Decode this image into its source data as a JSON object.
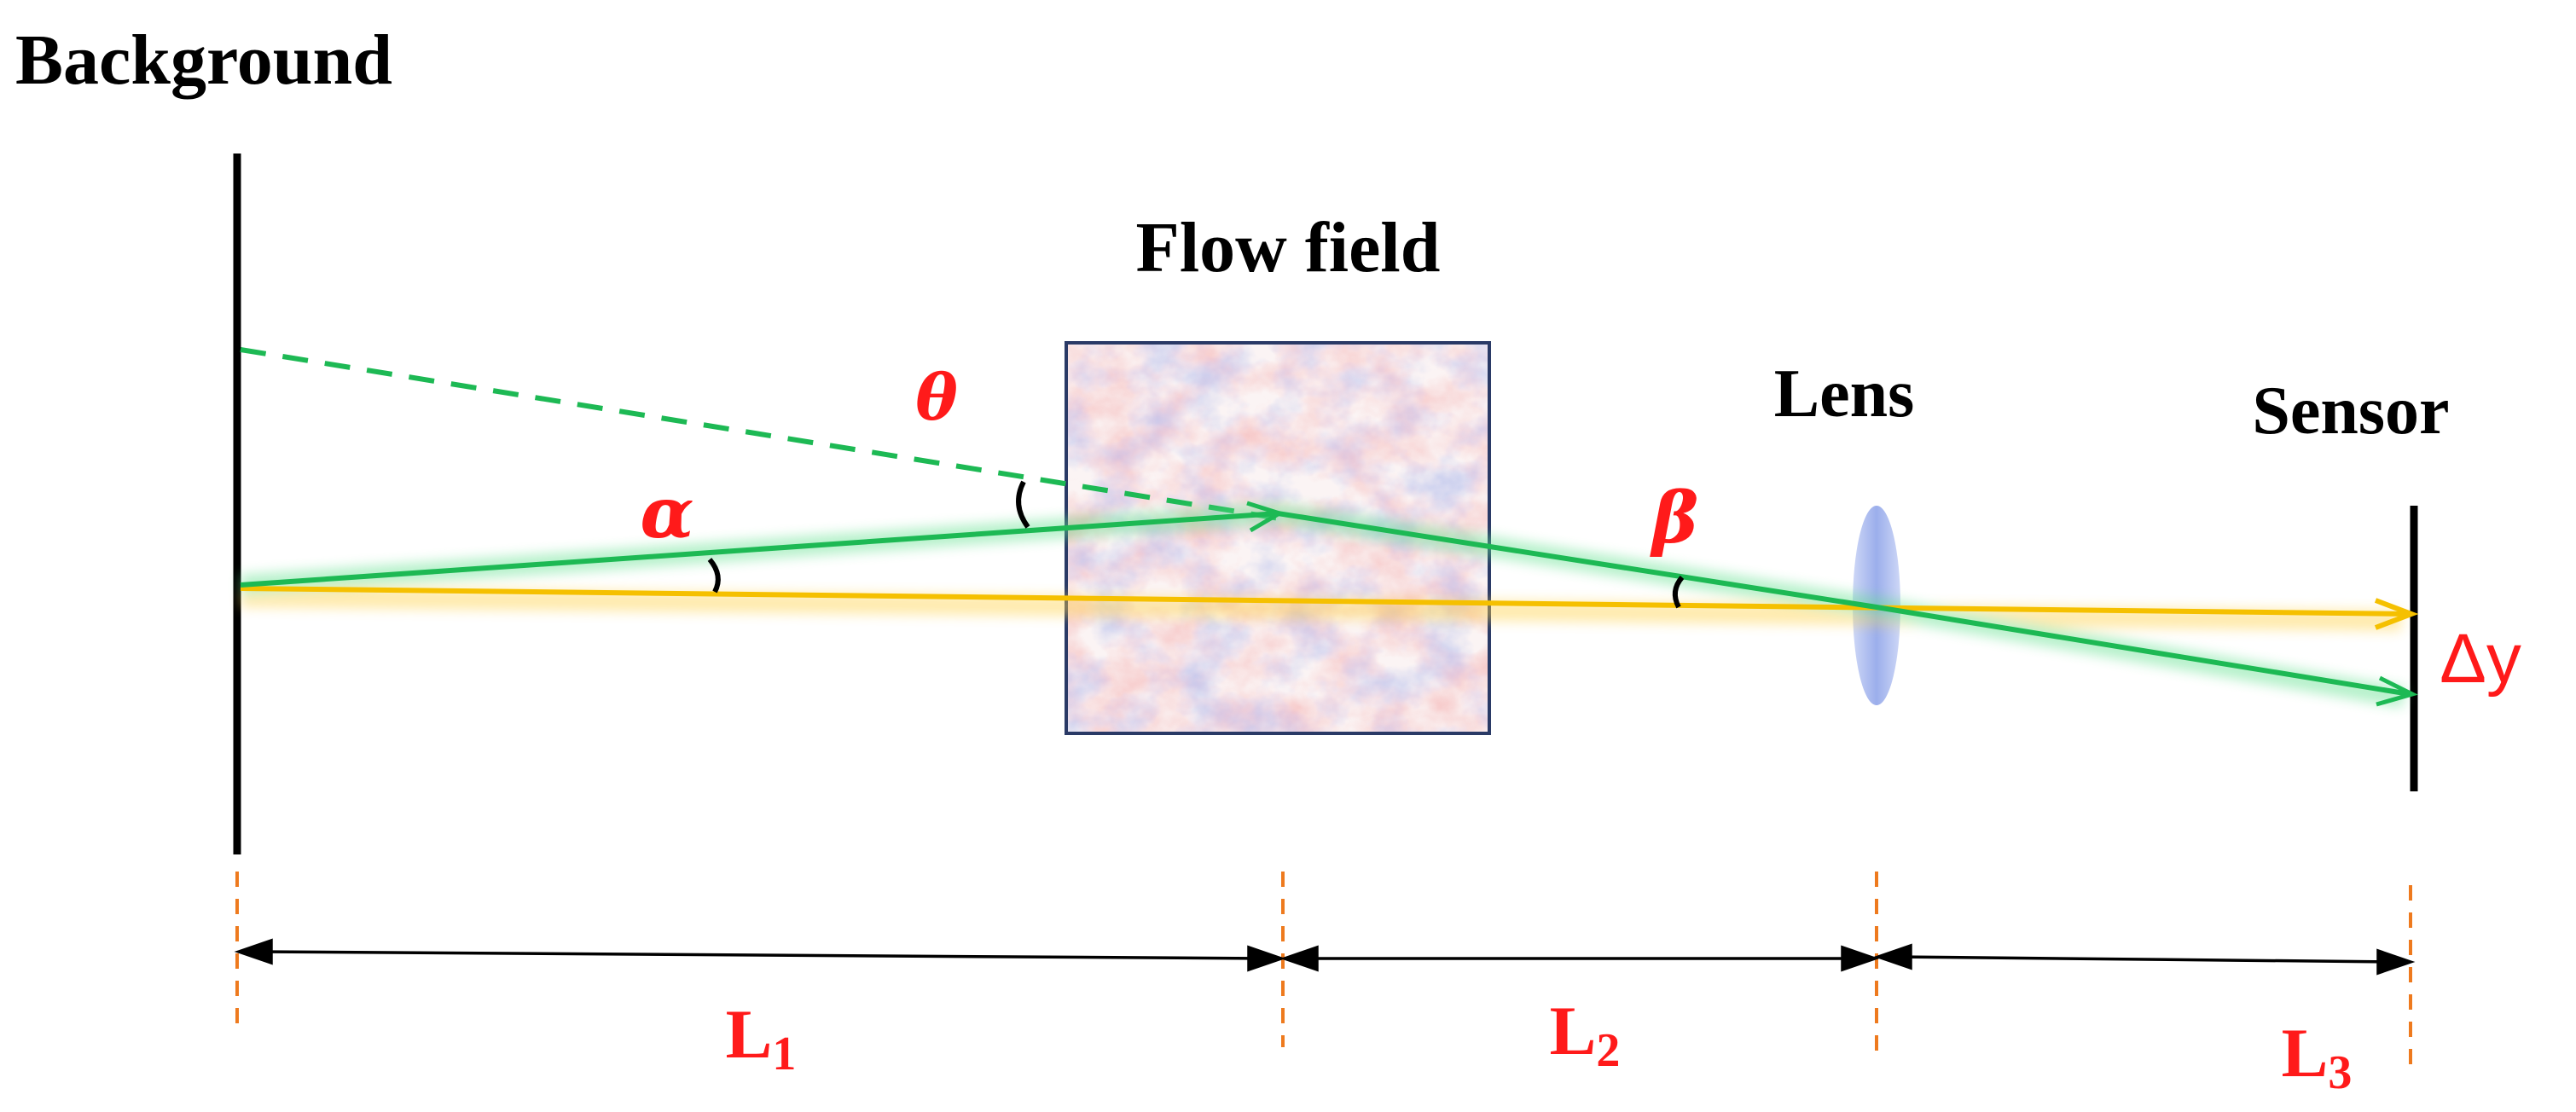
{
  "labels": {
    "background": "Background",
    "flow_field": "Flow field",
    "lens": "Lens",
    "sensor": "Sensor",
    "theta": "θ",
    "alpha": "α",
    "beta": "β",
    "delta_y": "Δy",
    "l1_letter": "L",
    "l1_sub": "1",
    "l2_letter": "L",
    "l2_sub": "2",
    "l3_letter": "L",
    "l3_sub": "3"
  },
  "colors": {
    "axis_ray": "#f5c000",
    "deflected_ray": "#1db954",
    "angle_label": "#ff1a1a",
    "dimension_marker": "#ee7a1e",
    "lens": "#8aa0e8",
    "flow_field_border": "#2a3a66"
  }
}
